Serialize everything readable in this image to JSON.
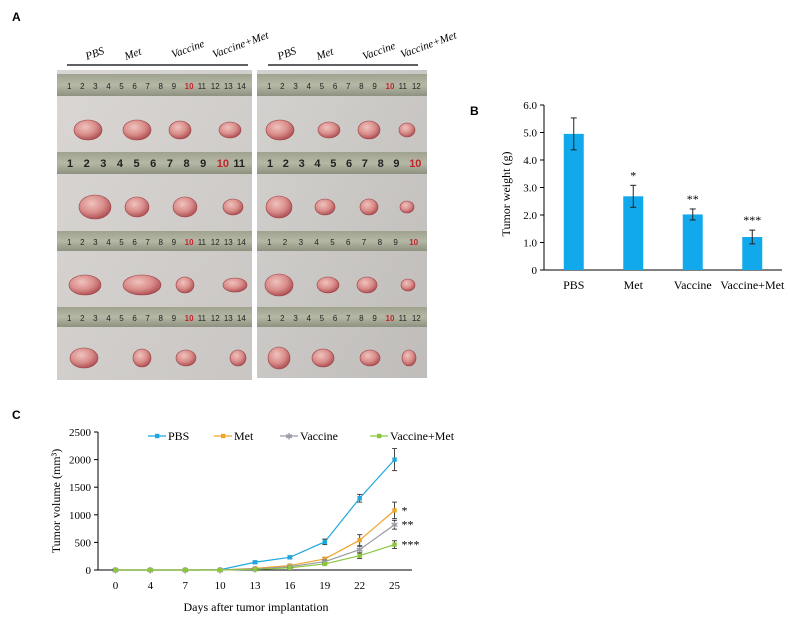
{
  "panels": {
    "a": "A",
    "b": "B",
    "c": "C"
  },
  "photo_groups": {
    "left": [
      "PBS",
      "Met",
      "Vaccine",
      "Vaccine+Met"
    ],
    "right": [
      "PBS",
      "Met",
      "Vaccine",
      "Vaccine+Met"
    ]
  },
  "ruler_marks": [
    "1",
    "2",
    "3",
    "4",
    "5",
    "6",
    "7",
    "8",
    "9",
    "10",
    "11",
    "12",
    "13",
    "14"
  ],
  "colors": {
    "pbs": "#1fa8e0",
    "met": "#f0a32a",
    "vaccine": "#9a9aa6",
    "vaccine_met": "#8cc63f",
    "bar": "#11a9ec",
    "ruler_red": "#c0232b"
  },
  "chart_data": [
    {
      "type": "bar",
      "panel": "B",
      "categories": [
        "PBS",
        "Met",
        "Vaccine",
        "Vaccine+Met"
      ],
      "values": [
        4.95,
        2.68,
        2.02,
        1.2
      ],
      "errors": [
        0.58,
        0.4,
        0.2,
        0.25
      ],
      "significance": [
        "",
        "*",
        "**",
        "***"
      ],
      "ylabel": "Tumor weight (g)",
      "ylim": [
        0,
        6
      ],
      "yticks": [
        "0",
        "1.0",
        "2.0",
        "3.0",
        "4.0",
        "5.0",
        "6.0"
      ],
      "grid": false
    },
    {
      "type": "line",
      "panel": "C",
      "x": [
        "0",
        "4",
        "7",
        "10",
        "13",
        "16",
        "19",
        "22",
        "25"
      ],
      "xlabel": "Days after tumor implantation",
      "ylabel": "Tumor volume (mm³)",
      "ylim": [
        0,
        2500
      ],
      "yticks": [
        "0",
        "500",
        "1000",
        "1500",
        "2000",
        "2500"
      ],
      "legend_position": "top",
      "grid": false,
      "series": [
        {
          "name": "PBS",
          "values": [
            0,
            0,
            0,
            5,
            140,
            230,
            510,
            1300,
            2000
          ],
          "errors": [
            0,
            0,
            0,
            0,
            20,
            25,
            50,
            70,
            200
          ]
        },
        {
          "name": "Met",
          "values": [
            0,
            0,
            0,
            0,
            30,
            80,
            200,
            540,
            1080
          ],
          "errors": [
            0,
            0,
            0,
            0,
            10,
            15,
            30,
            100,
            150
          ]
        },
        {
          "name": "Vaccine",
          "values": [
            0,
            0,
            0,
            0,
            20,
            60,
            150,
            370,
            820
          ],
          "errors": [
            0,
            0,
            0,
            0,
            10,
            15,
            30,
            60,
            80
          ]
        },
        {
          "name": "Vaccine+Met",
          "values": [
            0,
            0,
            0,
            0,
            10,
            40,
            110,
            260,
            460
          ],
          "errors": [
            0,
            0,
            0,
            0,
            5,
            10,
            20,
            50,
            70
          ]
        }
      ],
      "significance": [
        "",
        "*",
        "**",
        "***"
      ]
    }
  ]
}
